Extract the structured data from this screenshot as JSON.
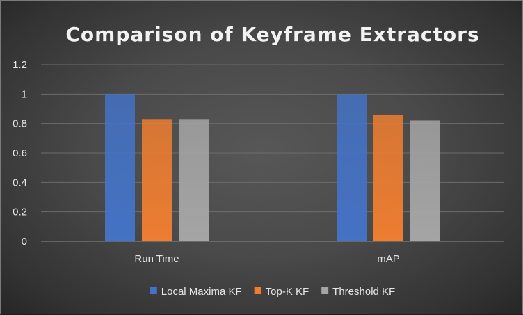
{
  "chart_data": {
    "type": "bar",
    "title": "Comparison of Keyframe Extractors",
    "xlabel": "",
    "ylabel": "",
    "categories": [
      "Run Time",
      "mAP"
    ],
    "series": [
      {
        "name": "Local Maxima KF",
        "values": [
          1.0,
          1.0
        ],
        "color": "#4472c4"
      },
      {
        "name": "Top-K KF",
        "values": [
          0.83,
          0.86
        ],
        "color": "#ed7d31"
      },
      {
        "name": "Threshold KF",
        "values": [
          0.83,
          0.82
        ],
        "color": "#a5a5a5"
      }
    ],
    "ylim": [
      0,
      1.2
    ],
    "yticks": [
      "0",
      "0.2",
      "0.4",
      "0.6",
      "0.8",
      "1",
      "1.2"
    ],
    "grid": true,
    "legend_position": "bottom"
  }
}
